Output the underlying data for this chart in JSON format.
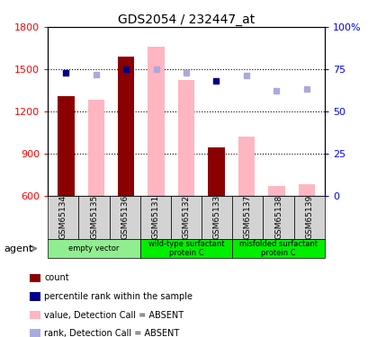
{
  "title": "GDS2054 / 232447_at",
  "samples": [
    "GSM65134",
    "GSM65135",
    "GSM65136",
    "GSM65131",
    "GSM65132",
    "GSM65133",
    "GSM65137",
    "GSM65138",
    "GSM65139"
  ],
  "count_present": [
    1310,
    null,
    1590,
    null,
    null,
    940,
    null,
    null,
    null
  ],
  "count_absent": [
    null,
    1280,
    null,
    1660,
    1420,
    null,
    1020,
    665,
    680
  ],
  "rank_present": [
    73,
    null,
    75,
    null,
    null,
    68,
    null,
    null,
    null
  ],
  "rank_absent": [
    null,
    72,
    null,
    75,
    73,
    null,
    71,
    62,
    63
  ],
  "ylim_left": [
    600,
    1800
  ],
  "ylim_right": [
    0,
    100
  ],
  "yticks_left": [
    600,
    900,
    1200,
    1500,
    1800
  ],
  "yticks_right": [
    0,
    25,
    50,
    75,
    100
  ],
  "color_present_bar": "#8b0000",
  "color_absent_bar": "#ffb6c1",
  "color_present_rank": "#00008b",
  "color_absent_rank": "#aaaadd",
  "bar_bottom": 600,
  "group_defs": [
    {
      "indices": [
        0,
        1,
        2
      ],
      "label": "empty vector",
      "color": "#90ee90"
    },
    {
      "indices": [
        3,
        4,
        5
      ],
      "label": "wild-type surfactant\nprotein C",
      "color": "#00ee00"
    },
    {
      "indices": [
        6,
        7,
        8
      ],
      "label": "misfolded surfactant\nprotein C",
      "color": "#00ee00"
    }
  ],
  "legend_items": [
    {
      "color": "#8b0000",
      "label": "count"
    },
    {
      "color": "#00008b",
      "label": "percentile rank within the sample"
    },
    {
      "color": "#ffb6c1",
      "label": "value, Detection Call = ABSENT"
    },
    {
      "color": "#aaaadd",
      "label": "rank, Detection Call = ABSENT"
    }
  ]
}
